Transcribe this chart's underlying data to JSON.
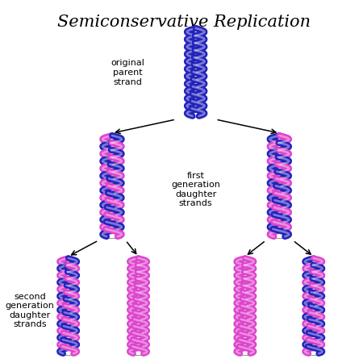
{
  "title": "Semiconservative Replication",
  "title_fontsize": 15,
  "background_color": "#ffffff",
  "color_blue": "#2222bb",
  "color_pink": "#dd44cc",
  "color_blue_light": "#5555ee",
  "color_pink_light": "#ee77dd",
  "label_original": "original\nparent\nstrand",
  "label_first": "first\ngeneration\ndaughter\nstrands",
  "label_second": "second\ngeneration\ndaughter\nstrands",
  "label_fontsize": 8
}
